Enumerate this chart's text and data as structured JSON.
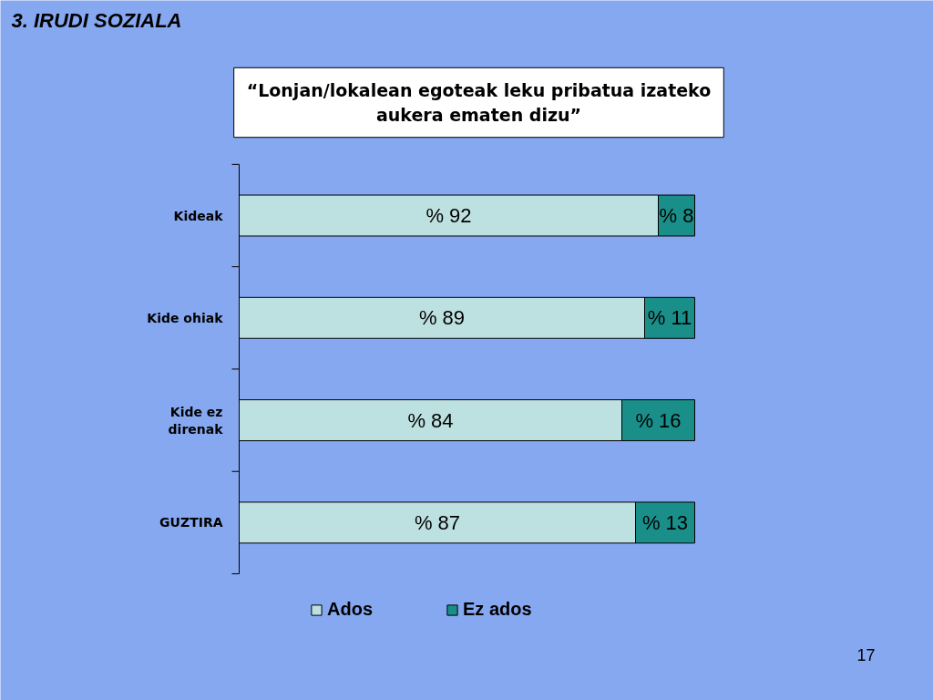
{
  "chart_data": {
    "type": "bar",
    "orientation": "horizontal",
    "stacked": true,
    "title": "3. IRUDI SOZIALA",
    "subtitle": "“Lonjan/lokalean egoteak leku pribatua izateko aukera ematen dizu”",
    "categories": [
      "Kideak",
      "Kide ohiak",
      "Kide ez direnak",
      "GUZTIRA"
    ],
    "series": [
      {
        "name": "Ados",
        "color": "#bde0e0",
        "values": [
          92,
          89,
          84,
          87
        ],
        "value_labels": [
          "% 92",
          "% 89",
          "% 84",
          "% 87"
        ]
      },
      {
        "name": "Ez ados",
        "color": "#1a8f8a",
        "values": [
          8,
          11,
          16,
          13
        ],
        "value_labels": [
          "% 8",
          "% 11",
          "% 16",
          "% 13"
        ]
      }
    ],
    "legend": "bottom",
    "grid": false,
    "annotations": [
      "17"
    ]
  }
}
